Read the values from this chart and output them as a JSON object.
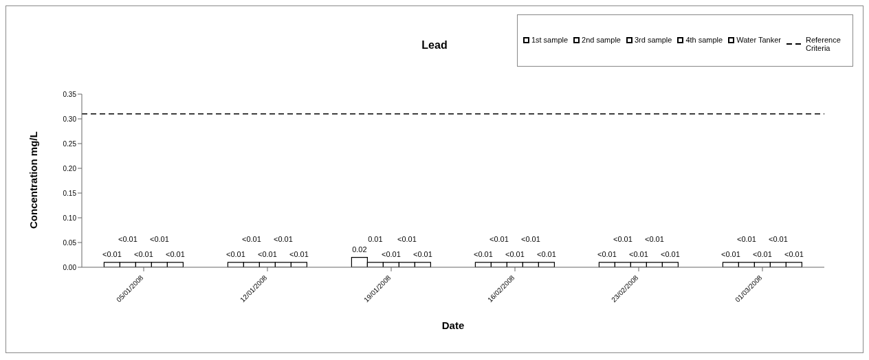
{
  "chart_data": {
    "type": "bar",
    "title": "Lead",
    "xlabel": "Date",
    "ylabel": "Concentration mg/L",
    "categories": [
      "05/01/2008",
      "12/01/2008",
      "19/01/2008",
      "16/02/2008",
      "23/02/2008",
      "01/03/2008"
    ],
    "series": [
      {
        "name": "1st sample",
        "color": "#ffffff",
        "values": [
          0.01,
          0.01,
          0.02,
          0.01,
          0.01,
          0.01
        ],
        "value_labels": [
          "<0.01",
          "<0.01",
          "0.02",
          "<0.01",
          "<0.01",
          "<0.01"
        ]
      },
      {
        "name": "2nd sample",
        "color": "#ffffff",
        "values": [
          0.01,
          0.01,
          0.01,
          0.01,
          0.01,
          0.01
        ],
        "value_labels": [
          "<0.01",
          "<0.01",
          "0.01",
          "<0.01",
          "<0.01",
          "<0.01"
        ]
      },
      {
        "name": "3rd sample",
        "color": "#ffffff",
        "values": [
          0.01,
          0.01,
          0.01,
          0.01,
          0.01,
          0.01
        ],
        "value_labels": [
          "<0.01",
          "<0.01",
          "<0.01",
          "<0.01",
          "<0.01",
          "<0.01"
        ]
      },
      {
        "name": "4th sample",
        "color": "#ffffff",
        "values": [
          0.01,
          0.01,
          0.01,
          0.01,
          0.01,
          0.01
        ],
        "value_labels": [
          "<0.01",
          "<0.01",
          "<0.01",
          "<0.01",
          "<0.01",
          "<0.01"
        ]
      },
      {
        "name": "Water Tanker",
        "color": "#ffffff",
        "values": [
          0.01,
          0.01,
          0.01,
          0.01,
          0.01,
          0.01
        ],
        "value_labels": [
          "<0.01",
          "<0.01",
          "<0.01",
          "<0.01",
          "<0.01",
          "<0.01"
        ]
      }
    ],
    "ref_lines": [
      {
        "axis": "y",
        "value": 0.31,
        "label": "Reference Criteria",
        "color": "#000000",
        "line_style": "dashed"
      }
    ],
    "ylim": [
      0,
      0.35
    ],
    "yticks": [
      {
        "value": 0,
        "label": "0.00"
      },
      {
        "value": 0.05,
        "label": "0.05"
      },
      {
        "value": 0.1,
        "label": "0.10"
      },
      {
        "value": 0.15,
        "label": "0.15"
      },
      {
        "value": 0.2,
        "label": "0.20"
      },
      {
        "value": 0.25,
        "label": "0.25"
      },
      {
        "value": 0.3,
        "label": "0.30"
      },
      {
        "value": 0.35,
        "label": "0.35"
      }
    ],
    "grid": false,
    "legend": "top right"
  }
}
